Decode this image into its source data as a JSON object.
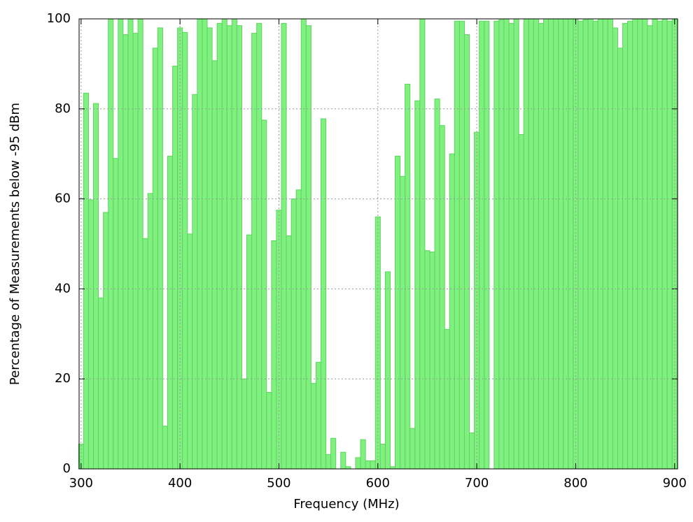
{
  "chart_data": {
    "type": "bar",
    "xlabel": "Frequency (MHz)",
    "ylabel": "Percentage of Measurements below -95 dBm",
    "color": "#80f080",
    "edge_color": "#5cd65c",
    "bar_width": 5,
    "grid": true,
    "xlim": [
      298,
      903
    ],
    "ylim": [
      0,
      100
    ],
    "xticks": [
      300,
      400,
      500,
      600,
      700,
      800,
      900
    ],
    "yticks": [
      0,
      20,
      40,
      60,
      80,
      100
    ],
    "x": [
      300,
      305,
      310,
      315,
      320,
      325,
      330,
      335,
      340,
      345,
      350,
      355,
      360,
      365,
      370,
      375,
      380,
      385,
      390,
      395,
      400,
      405,
      410,
      415,
      420,
      425,
      430,
      435,
      440,
      445,
      450,
      455,
      460,
      465,
      470,
      475,
      480,
      485,
      490,
      495,
      500,
      505,
      510,
      515,
      520,
      525,
      530,
      535,
      540,
      545,
      550,
      555,
      560,
      565,
      570,
      575,
      580,
      585,
      590,
      595,
      600,
      605,
      610,
      615,
      620,
      625,
      630,
      635,
      640,
      645,
      650,
      655,
      660,
      665,
      670,
      675,
      680,
      685,
      690,
      695,
      700,
      705,
      710,
      715,
      720,
      725,
      730,
      735,
      740,
      745,
      750,
      755,
      760,
      765,
      770,
      775,
      780,
      785,
      790,
      795,
      800,
      805,
      810,
      815,
      820,
      825,
      830,
      835,
      840,
      845,
      850,
      855,
      860,
      865,
      870,
      875,
      880,
      885,
      890,
      895,
      900
    ],
    "values": [
      5.5,
      83.5,
      59.8,
      81.2,
      38,
      57,
      100,
      69,
      100,
      96.5,
      100,
      96.8,
      100,
      51.2,
      61.2,
      93.5,
      98,
      9.5,
      69.5,
      89.5,
      98,
      97,
      52.2,
      83.2,
      100,
      100,
      98,
      90.7,
      99,
      100,
      98.5,
      100,
      98.5,
      20,
      52,
      96.8,
      99,
      77.5,
      17,
      50.7,
      57.5,
      99,
      51.8,
      60,
      62,
      100,
      98.5,
      19,
      23.7,
      77.8,
      3.2,
      6.8,
      0,
      3.7,
      0.5,
      0,
      2.5,
      6.5,
      1.8,
      1.8,
      56,
      5.5,
      43.8,
      0.5,
      69.5,
      65,
      85.5,
      9,
      81.8,
      100,
      48.5,
      48.2,
      82.2,
      76.3,
      31,
      70,
      99.5,
      99.5,
      96.5,
      8,
      74.8,
      99.5,
      99.5,
      0,
      99.5,
      99.8,
      100,
      99,
      100,
      74.3,
      100,
      100,
      100,
      99,
      100,
      100,
      100,
      100,
      100,
      100,
      100,
      99.5,
      99.8,
      100,
      99.5,
      100,
      100,
      100,
      98,
      93.5,
      99,
      99.5,
      100,
      100,
      100,
      98.5,
      100,
      99.5,
      100,
      99.5,
      100
    ]
  }
}
